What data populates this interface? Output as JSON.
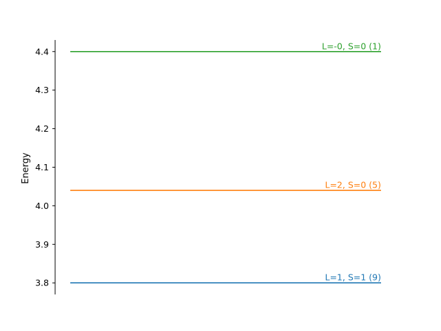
{
  "chart_data": {
    "type": "line",
    "title": "",
    "xlabel": "",
    "ylabel": "Energy",
    "ylim": [
      3.77,
      4.43
    ],
    "yticks": [
      3.8,
      3.9,
      4.0,
      4.1,
      4.2,
      4.3,
      4.4
    ],
    "ytick_labels": [
      "3.8",
      "3.9",
      "4.0",
      "4.1",
      "4.2",
      "4.3",
      "4.4"
    ],
    "grid": false,
    "legend": "none",
    "series": [
      {
        "name": "L=1, S=1 (9)",
        "energy": 3.8,
        "color": "#1f77b4"
      },
      {
        "name": "L=2, S=0 (5)",
        "energy": 4.04,
        "color": "#ff7f0e"
      },
      {
        "name": "L=-0, S=0 (1)",
        "energy": 4.4,
        "color": "#2ca02c"
      }
    ]
  }
}
